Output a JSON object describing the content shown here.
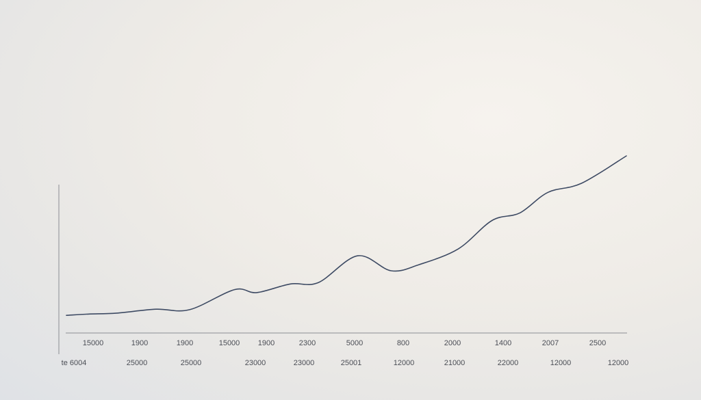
{
  "chart_data": {
    "type": "line",
    "title": "",
    "xlabel": "",
    "ylabel": "",
    "grid": false,
    "legend": "none",
    "line_color": "#3d4a63",
    "axis_color": "#8a8d93",
    "x_tick_labels_row1": [
      "15000",
      "1900",
      "1900",
      "15000",
      "1900",
      "2300",
      "5000",
      "800",
      "2000",
      "1400",
      "2007",
      "2500"
    ],
    "x_tick_labels_row2": [
      "te 6004",
      "25000",
      "25000",
      "23000",
      "23000",
      "25001",
      "12000",
      "21000",
      "22000",
      "12000",
      "12000"
    ],
    "series": [
      {
        "points": [
          [
            0.0,
            0.02
          ],
          [
            0.04,
            0.028
          ],
          [
            0.09,
            0.034
          ],
          [
            0.16,
            0.058
          ],
          [
            0.22,
            0.055
          ],
          [
            0.3,
            0.178
          ],
          [
            0.34,
            0.16
          ],
          [
            0.4,
            0.213
          ],
          [
            0.45,
            0.222
          ],
          [
            0.52,
            0.386
          ],
          [
            0.58,
            0.294
          ],
          [
            0.63,
            0.332
          ],
          [
            0.7,
            0.429
          ],
          [
            0.76,
            0.603
          ],
          [
            0.81,
            0.65
          ],
          [
            0.86,
            0.776
          ],
          [
            0.92,
            0.832
          ],
          [
            1.0,
            1.0
          ]
        ]
      }
    ]
  }
}
